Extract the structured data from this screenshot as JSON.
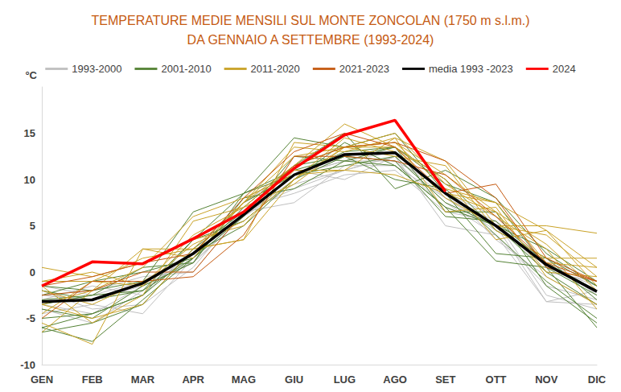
{
  "chart_data": {
    "type": "line",
    "title": "TEMPERATURE MEDIE MENSILI SUL MONTE ZONCOLAN (1750 m s.l.m.)\nDA GENNAIO A SETTEMBRE (1993-2024)",
    "ylabel": "°C",
    "categories": [
      "GEN",
      "FEB",
      "MAR",
      "APR",
      "MAG",
      "GIU",
      "LUG",
      "AGO",
      "SET",
      "OTT",
      "NOV",
      "DIC"
    ],
    "ylim": [
      -10,
      20
    ],
    "yticks": [
      -10,
      -5,
      0,
      5,
      10,
      15
    ],
    "grid": false,
    "legend": "top",
    "series": [
      {
        "name": "1993-2000",
        "color": "#bfbfbf",
        "values": [
          [
            -3.5,
            -4.5,
            -1.5,
            1.0,
            6.5,
            9.0,
            11.0,
            12.5,
            5.0,
            4.0,
            -1.5,
            -3.0
          ],
          [
            -2.0,
            -4.0,
            -3.5,
            0.5,
            7.0,
            8.5,
            10.5,
            11.0,
            6.5,
            5.5,
            -2.5,
            -4.0
          ],
          [
            -4.5,
            -3.5,
            -4.5,
            1.5,
            6.0,
            10.0,
            12.5,
            12.0,
            7.0,
            5.0,
            -3.2,
            -3.5
          ],
          [
            -2.5,
            -2.0,
            -0.5,
            0.0,
            6.5,
            7.5,
            11.5,
            11.5,
            8.0,
            4.5,
            1.5,
            -2.5
          ],
          [
            -3.0,
            -1.5,
            -2.5,
            2.5,
            7.5,
            10.5,
            12.0,
            13.0,
            8.5,
            6.0,
            0.5,
            -1.5
          ],
          [
            -1.5,
            -2.5,
            -1.0,
            1.0,
            6.0,
            9.5,
            11.0,
            12.5,
            7.5,
            4.0,
            -3.2,
            -2.0
          ],
          [
            -4.0,
            -5.5,
            -2.0,
            2.0,
            8.0,
            10.5,
            12.0,
            12.0,
            9.0,
            3.5,
            -0.5,
            -3.5
          ],
          [
            -2.5,
            -3.0,
            -1.5,
            1.5,
            7.5,
            11.0,
            10.0,
            12.5,
            8.0,
            5.5,
            0.0,
            -1.0
          ]
        ]
      },
      {
        "name": "2001-2010",
        "color": "#548235",
        "values": [
          [
            -3.0,
            -2.5,
            0.5,
            1.0,
            8.0,
            9.0,
            12.0,
            13.5,
            6.5,
            6.5,
            -1.5,
            -5.5
          ],
          [
            -2.5,
            -1.0,
            0.0,
            1.5,
            6.0,
            12.5,
            12.0,
            11.5,
            7.0,
            5.0,
            2.5,
            -1.0
          ],
          [
            -4.0,
            -5.0,
            -1.5,
            1.0,
            8.5,
            14.5,
            13.5,
            15.0,
            8.5,
            2.0,
            1.5,
            -1.5
          ],
          [
            -5.0,
            -4.5,
            -2.5,
            2.0,
            5.0,
            10.0,
            12.5,
            13.5,
            9.5,
            7.5,
            0.5,
            -2.5
          ],
          [
            -6.0,
            -7.5,
            -3.0,
            1.5,
            7.0,
            11.5,
            12.5,
            10.0,
            9.0,
            4.0,
            -1.0,
            -5.0
          ],
          [
            -6.5,
            -5.5,
            -3.5,
            2.5,
            6.5,
            11.5,
            15.0,
            9.0,
            11.0,
            8.0,
            2.0,
            -1.5
          ],
          [
            -1.5,
            -2.0,
            -1.0,
            6.5,
            8.5,
            11.0,
            12.5,
            12.0,
            6.0,
            5.5,
            1.0,
            -2.0
          ],
          [
            -2.0,
            -3.0,
            -2.0,
            1.5,
            7.5,
            10.5,
            11.5,
            12.5,
            7.5,
            5.0,
            0.0,
            -3.5
          ],
          [
            -3.5,
            -2.5,
            -2.0,
            3.5,
            8.5,
            10.5,
            13.0,
            13.5,
            10.0,
            4.5,
            1.5,
            -3.0
          ],
          [
            -6.0,
            -4.5,
            -2.5,
            3.5,
            5.5,
            10.0,
            14.0,
            11.5,
            7.0,
            1.2,
            0.5,
            -6.0
          ]
        ]
      },
      {
        "name": "2011-2020",
        "color": "#c9a227",
        "values": [
          [
            -3.5,
            -2.0,
            0.5,
            6.0,
            8.0,
            10.5,
            11.0,
            14.5,
            12.0,
            5.0,
            4.0,
            -0.5
          ],
          [
            -5.5,
            -7.8,
            2.5,
            1.5,
            7.5,
            12.5,
            13.5,
            15.0,
            9.5,
            6.0,
            2.5,
            -4.0
          ],
          [
            -3.5,
            -5.0,
            -3.5,
            2.5,
            3.5,
            10.0,
            14.5,
            13.0,
            8.5,
            6.5,
            0.0,
            -0.5
          ],
          [
            0.5,
            -0.5,
            1.0,
            3.5,
            5.0,
            11.0,
            11.0,
            10.5,
            8.5,
            7.5,
            4.5,
            0.5
          ],
          [
            -2.0,
            -3.5,
            -1.0,
            2.0,
            7.5,
            11.5,
            16.0,
            13.5,
            8.0,
            5.0,
            5.0,
            4.2
          ],
          [
            -1.0,
            -1.0,
            -1.5,
            3.0,
            5.5,
            10.0,
            13.5,
            12.5,
            11.5,
            4.5,
            1.5,
            1.5
          ],
          [
            -6.5,
            -2.0,
            2.5,
            2.5,
            7.5,
            13.5,
            13.0,
            14.5,
            6.5,
            7.0,
            -0.5,
            -3.5
          ],
          [
            -1.5,
            -5.5,
            -2.5,
            5.5,
            7.0,
            11.5,
            13.5,
            14.0,
            10.5,
            6.5,
            3.0,
            -2.0
          ],
          [
            -4.5,
            -1.0,
            1.5,
            2.5,
            3.5,
            14.0,
            13.5,
            14.0,
            9.0,
            7.5,
            1.0,
            0.5
          ],
          [
            -1.0,
            0.0,
            -1.5,
            4.0,
            7.0,
            9.5,
            13.5,
            13.5,
            10.0,
            3.5,
            4.5,
            -1.5
          ]
        ]
      },
      {
        "name": "2021-2023",
        "color": "#c55a11",
        "values": [
          [
            -5.0,
            -1.0,
            -1.0,
            -0.5,
            4.0,
            12.5,
            12.5,
            12.0,
            10.5,
            6.0,
            1.0,
            -1.0
          ],
          [
            -1.5,
            -0.5,
            1.0,
            2.0,
            8.0,
            13.0,
            15.0,
            13.5,
            8.5,
            9.5,
            1.5,
            -1.0
          ],
          [
            -2.5,
            -2.0,
            0.0,
            0.0,
            6.5,
            11.5,
            13.5,
            14.0,
            12.0,
            8.0,
            0.5,
            -1.0
          ]
        ]
      },
      {
        "name": "media 1993 -2023",
        "color": "#000000",
        "values": [
          -3.2,
          -3.0,
          -1.2,
          2.0,
          6.2,
          10.5,
          12.7,
          12.9,
          8.5,
          5.0,
          0.8,
          -2.1
        ]
      },
      {
        "name": "2024",
        "color": "#ff0000",
        "values": [
          -1.5,
          1.1,
          0.9,
          3.6,
          6.5,
          11.2,
          14.8,
          16.4,
          8.7,
          null,
          null,
          null
        ]
      }
    ]
  }
}
